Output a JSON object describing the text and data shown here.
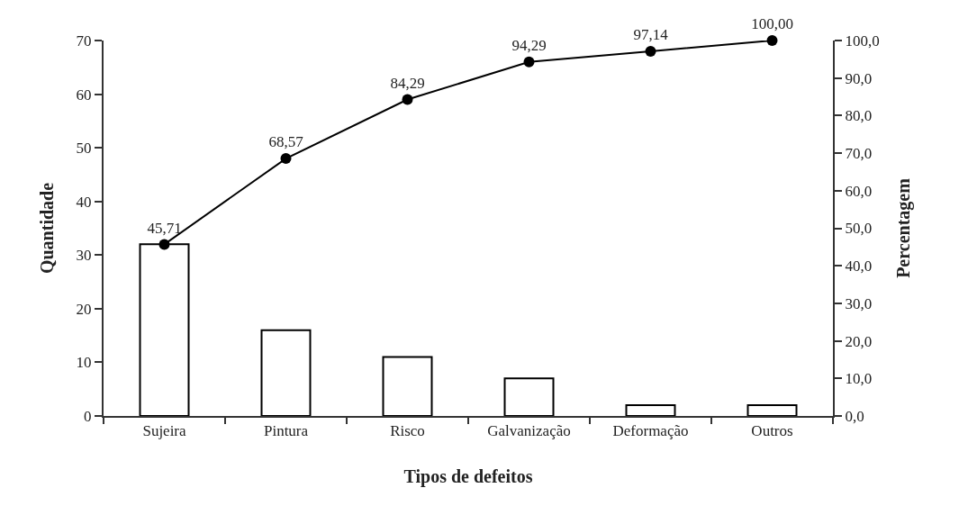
{
  "chart_data": {
    "type": "bar",
    "xlabel": "Tipos de defeitos",
    "ylabel": "Quantidade",
    "y2label": "Percentagem",
    "categories": [
      "Sujeira",
      "Pintura",
      "Risco",
      "Galvanização",
      "Deformação",
      "Outros"
    ],
    "series": [
      {
        "color": "#ffffff",
        "values": [
          32,
          16,
          11,
          7,
          2,
          2
        ]
      },
      {
        "type": "line",
        "axis": "y2",
        "color": "#000000",
        "values": [
          45.71,
          68.57,
          84.29,
          94.29,
          97.14,
          100
        ],
        "value_labels": [
          "45,71",
          "68,57",
          "84,29",
          "94,29",
          "97,14",
          "100,00"
        ]
      }
    ],
    "ylim": [
      0,
      70
    ],
    "yticks": [
      0,
      10,
      20,
      30,
      40,
      50,
      60,
      70
    ],
    "y2lim": [
      0,
      100
    ],
    "y2ticks": [
      {
        "value": 0,
        "label": "0,0"
      },
      {
        "value": 10,
        "label": "10,0"
      },
      {
        "value": 20,
        "label": "20,0"
      },
      {
        "value": 30,
        "label": "30,0"
      },
      {
        "value": 40,
        "label": "40,0"
      },
      {
        "value": 50,
        "label": "50,0"
      },
      {
        "value": 60,
        "label": "60,0"
      },
      {
        "value": 70,
        "label": "70,0"
      },
      {
        "value": 80,
        "label": "80,0"
      },
      {
        "value": 90,
        "label": "90,0"
      },
      {
        "value": 100,
        "label": "100,0"
      }
    ],
    "grid": false,
    "marker": "circle",
    "line_style": "solid"
  }
}
